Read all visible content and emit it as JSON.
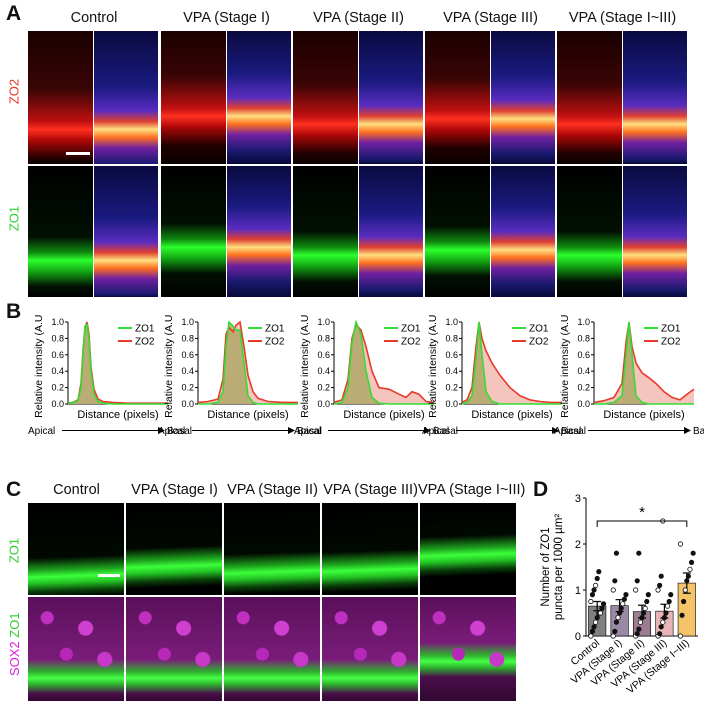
{
  "panels": {
    "A": "A",
    "B": "B",
    "C": "C",
    "D": "D"
  },
  "conditions_a": [
    "Control",
    "VPA (Stage I)",
    "VPA (Stage II)",
    "VPA (Stage III)",
    "VPA (Stage I~III)"
  ],
  "conditions_c": [
    "Control",
    "VPA (Stage I)",
    "VPA (Stage II)",
    "VPA (Stage III)",
    "VPA (Stage I~III)"
  ],
  "row_labels_a": {
    "zo2": "ZO2",
    "zo1": "ZO1"
  },
  "row_labels_c": {
    "zo1": "ZO1",
    "sox2": "SOX2",
    "zo1_overlay": "ZO1"
  },
  "colors": {
    "zo1": "#33dd33",
    "zo2": "#e8392b",
    "sox2": "#dd22dd",
    "fill_zo2": "#f2b5ac",
    "fill_overlap": "#b0a86a"
  },
  "profiles": {
    "ylabel": "Relative intensity (A.U.)",
    "xlabel": "Distance (pixels)",
    "apical": "Apical",
    "basal": "Basal",
    "yticks": [
      "0.0",
      "0.2",
      "0.4",
      "0.6",
      "0.8",
      "1.0"
    ],
    "legend": {
      "zo1": "ZO1",
      "zo2": "ZO2"
    }
  },
  "chart_data": [
    {
      "type": "line",
      "title": "Control",
      "xlabel": "Distance (pixels)",
      "ylabel": "Relative intensity (A.U.)",
      "ylim": [
        0,
        1.0
      ],
      "x": [
        0,
        0.05,
        0.1,
        0.13,
        0.15,
        0.17,
        0.19,
        0.21,
        0.23,
        0.26,
        0.3,
        0.35,
        0.45,
        0.6,
        0.8,
        1.0
      ],
      "series": [
        {
          "name": "ZO1",
          "values": [
            0.01,
            0.02,
            0.04,
            0.2,
            0.6,
            0.95,
            0.97,
            0.8,
            0.4,
            0.12,
            0.03,
            0.01,
            0.0,
            0.0,
            0.0,
            0.0
          ]
        },
        {
          "name": "ZO2",
          "values": [
            0.01,
            0.02,
            0.05,
            0.25,
            0.65,
            0.93,
            1.0,
            0.85,
            0.45,
            0.18,
            0.06,
            0.03,
            0.02,
            0.01,
            0.01,
            0.01
          ]
        }
      ]
    },
    {
      "type": "line",
      "title": "VPA (Stage I)",
      "xlabel": "Distance (pixels)",
      "ylabel": "Relative intensity (A.U.)",
      "ylim": [
        0,
        1.0
      ],
      "x": [
        0,
        0.1,
        0.2,
        0.25,
        0.28,
        0.31,
        0.35,
        0.38,
        0.42,
        0.46,
        0.5,
        0.55,
        0.6,
        0.7,
        0.85,
        1.0
      ],
      "series": [
        {
          "name": "ZO1",
          "values": [
            0.0,
            0.0,
            0.02,
            0.15,
            0.7,
            1.0,
            0.95,
            0.9,
            0.9,
            0.5,
            0.1,
            0.02,
            0.0,
            0.0,
            0.0,
            0.0
          ]
        },
        {
          "name": "ZO2",
          "values": [
            0.02,
            0.03,
            0.06,
            0.3,
            0.85,
            0.93,
            0.88,
            0.96,
            1.0,
            0.7,
            0.35,
            0.15,
            0.07,
            0.03,
            0.02,
            0.02
          ]
        }
      ]
    },
    {
      "type": "line",
      "title": "VPA (Stage II)",
      "xlabel": "Distance (pixels)",
      "ylabel": "Relative intensity (A.U.)",
      "ylim": [
        0,
        1.0
      ],
      "x": [
        0,
        0.08,
        0.14,
        0.18,
        0.22,
        0.27,
        0.32,
        0.38,
        0.45,
        0.55,
        0.65,
        0.72,
        0.78,
        0.85,
        0.92,
        1.0
      ],
      "series": [
        {
          "name": "ZO1",
          "values": [
            0.0,
            0.02,
            0.2,
            0.75,
            1.0,
            0.85,
            0.4,
            0.08,
            0.01,
            0.0,
            0.0,
            0.0,
            0.0,
            0.0,
            0.0,
            0.0
          ]
        },
        {
          "name": "ZO2",
          "values": [
            0.02,
            0.05,
            0.3,
            0.8,
            0.97,
            0.9,
            0.7,
            0.4,
            0.2,
            0.18,
            0.12,
            0.08,
            0.15,
            0.12,
            0.03,
            0.02
          ]
        }
      ]
    },
    {
      "type": "line",
      "title": "VPA (Stage III)",
      "xlabel": "Distance (pixels)",
      "ylabel": "Relative intensity (A.U.)",
      "ylim": [
        0,
        1.0
      ],
      "x": [
        0,
        0.05,
        0.1,
        0.14,
        0.17,
        0.2,
        0.24,
        0.3,
        0.38,
        0.48,
        0.58,
        0.68,
        0.78,
        0.88,
        1.0
      ],
      "series": [
        {
          "name": "ZO1",
          "values": [
            0.0,
            0.02,
            0.1,
            0.55,
            1.0,
            0.6,
            0.15,
            0.03,
            0.0,
            0.0,
            0.0,
            0.0,
            0.0,
            0.0,
            0.0
          ]
        },
        {
          "name": "ZO2",
          "values": [
            0.02,
            0.05,
            0.2,
            0.7,
            1.0,
            0.8,
            0.65,
            0.5,
            0.35,
            0.2,
            0.1,
            0.05,
            0.03,
            0.02,
            0.02
          ]
        }
      ]
    },
    {
      "type": "line",
      "title": "VPA (Stage I~III)",
      "xlabel": "Distance (pixels)",
      "ylabel": "Relative intensity (A.U.)",
      "ylim": [
        0,
        1.0
      ],
      "x": [
        0,
        0.1,
        0.2,
        0.28,
        0.32,
        0.35,
        0.38,
        0.42,
        0.48,
        0.55,
        0.62,
        0.7,
        0.78,
        0.86,
        0.93,
        1.0
      ],
      "series": [
        {
          "name": "ZO1",
          "values": [
            0.0,
            0.0,
            0.02,
            0.1,
            0.6,
            1.0,
            0.6,
            0.1,
            0.02,
            0.0,
            0.0,
            0.0,
            0.0,
            0.0,
            0.0,
            0.0
          ]
        },
        {
          "name": "ZO2",
          "values": [
            0.02,
            0.04,
            0.08,
            0.25,
            0.75,
            1.0,
            0.7,
            0.5,
            0.38,
            0.32,
            0.25,
            0.15,
            0.08,
            0.05,
            0.12,
            0.18
          ]
        }
      ]
    },
    {
      "type": "bar",
      "title": "",
      "ylabel": "Number of ZO1 puncta per 1000 µm²",
      "ylabel_line1": "Number of ZO1",
      "ylabel_line2": "puncta per 1000 µm²",
      "xlabel": "",
      "ylim": [
        0,
        3
      ],
      "yticks": [
        "0",
        "1",
        "2",
        "3"
      ],
      "categories": [
        "Control",
        "VPA (Stage I)",
        "VPA (Stage II)",
        "VPA (Stage III)",
        "VPA (Stage I~III)"
      ],
      "values": [
        0.65,
        0.66,
        0.53,
        0.54,
        1.15
      ],
      "errors": [
        0.1,
        0.13,
        0.14,
        0.15,
        0.22
      ],
      "bar_colors": [
        "#808080",
        "#9a8aa8",
        "#9d7c92",
        "#e8b4b8",
        "#f5c46a"
      ],
      "significance": "*",
      "points": [
        [
          0.0,
          0.1,
          0.2,
          0.3,
          0.4,
          0.5,
          0.5,
          0.6,
          0.7,
          0.75,
          0.9,
          1.0,
          1.1,
          1.25,
          1.4
        ],
        [
          0.0,
          0.1,
          0.3,
          0.4,
          0.5,
          0.6,
          0.7,
          0.8,
          0.9,
          1.0,
          1.2,
          1.8
        ],
        [
          0.0,
          0.05,
          0.15,
          0.3,
          0.4,
          0.5,
          0.6,
          0.75,
          0.9,
          1.0,
          1.2,
          1.8
        ],
        [
          0.0,
          0.05,
          0.2,
          0.3,
          0.4,
          0.5,
          0.65,
          0.75,
          0.9,
          1.0,
          1.1,
          1.3,
          2.5
        ],
        [
          0.0,
          0.45,
          0.75,
          1.0,
          1.2,
          1.3,
          1.45,
          1.6,
          1.8,
          2.0
        ]
      ]
    }
  ]
}
